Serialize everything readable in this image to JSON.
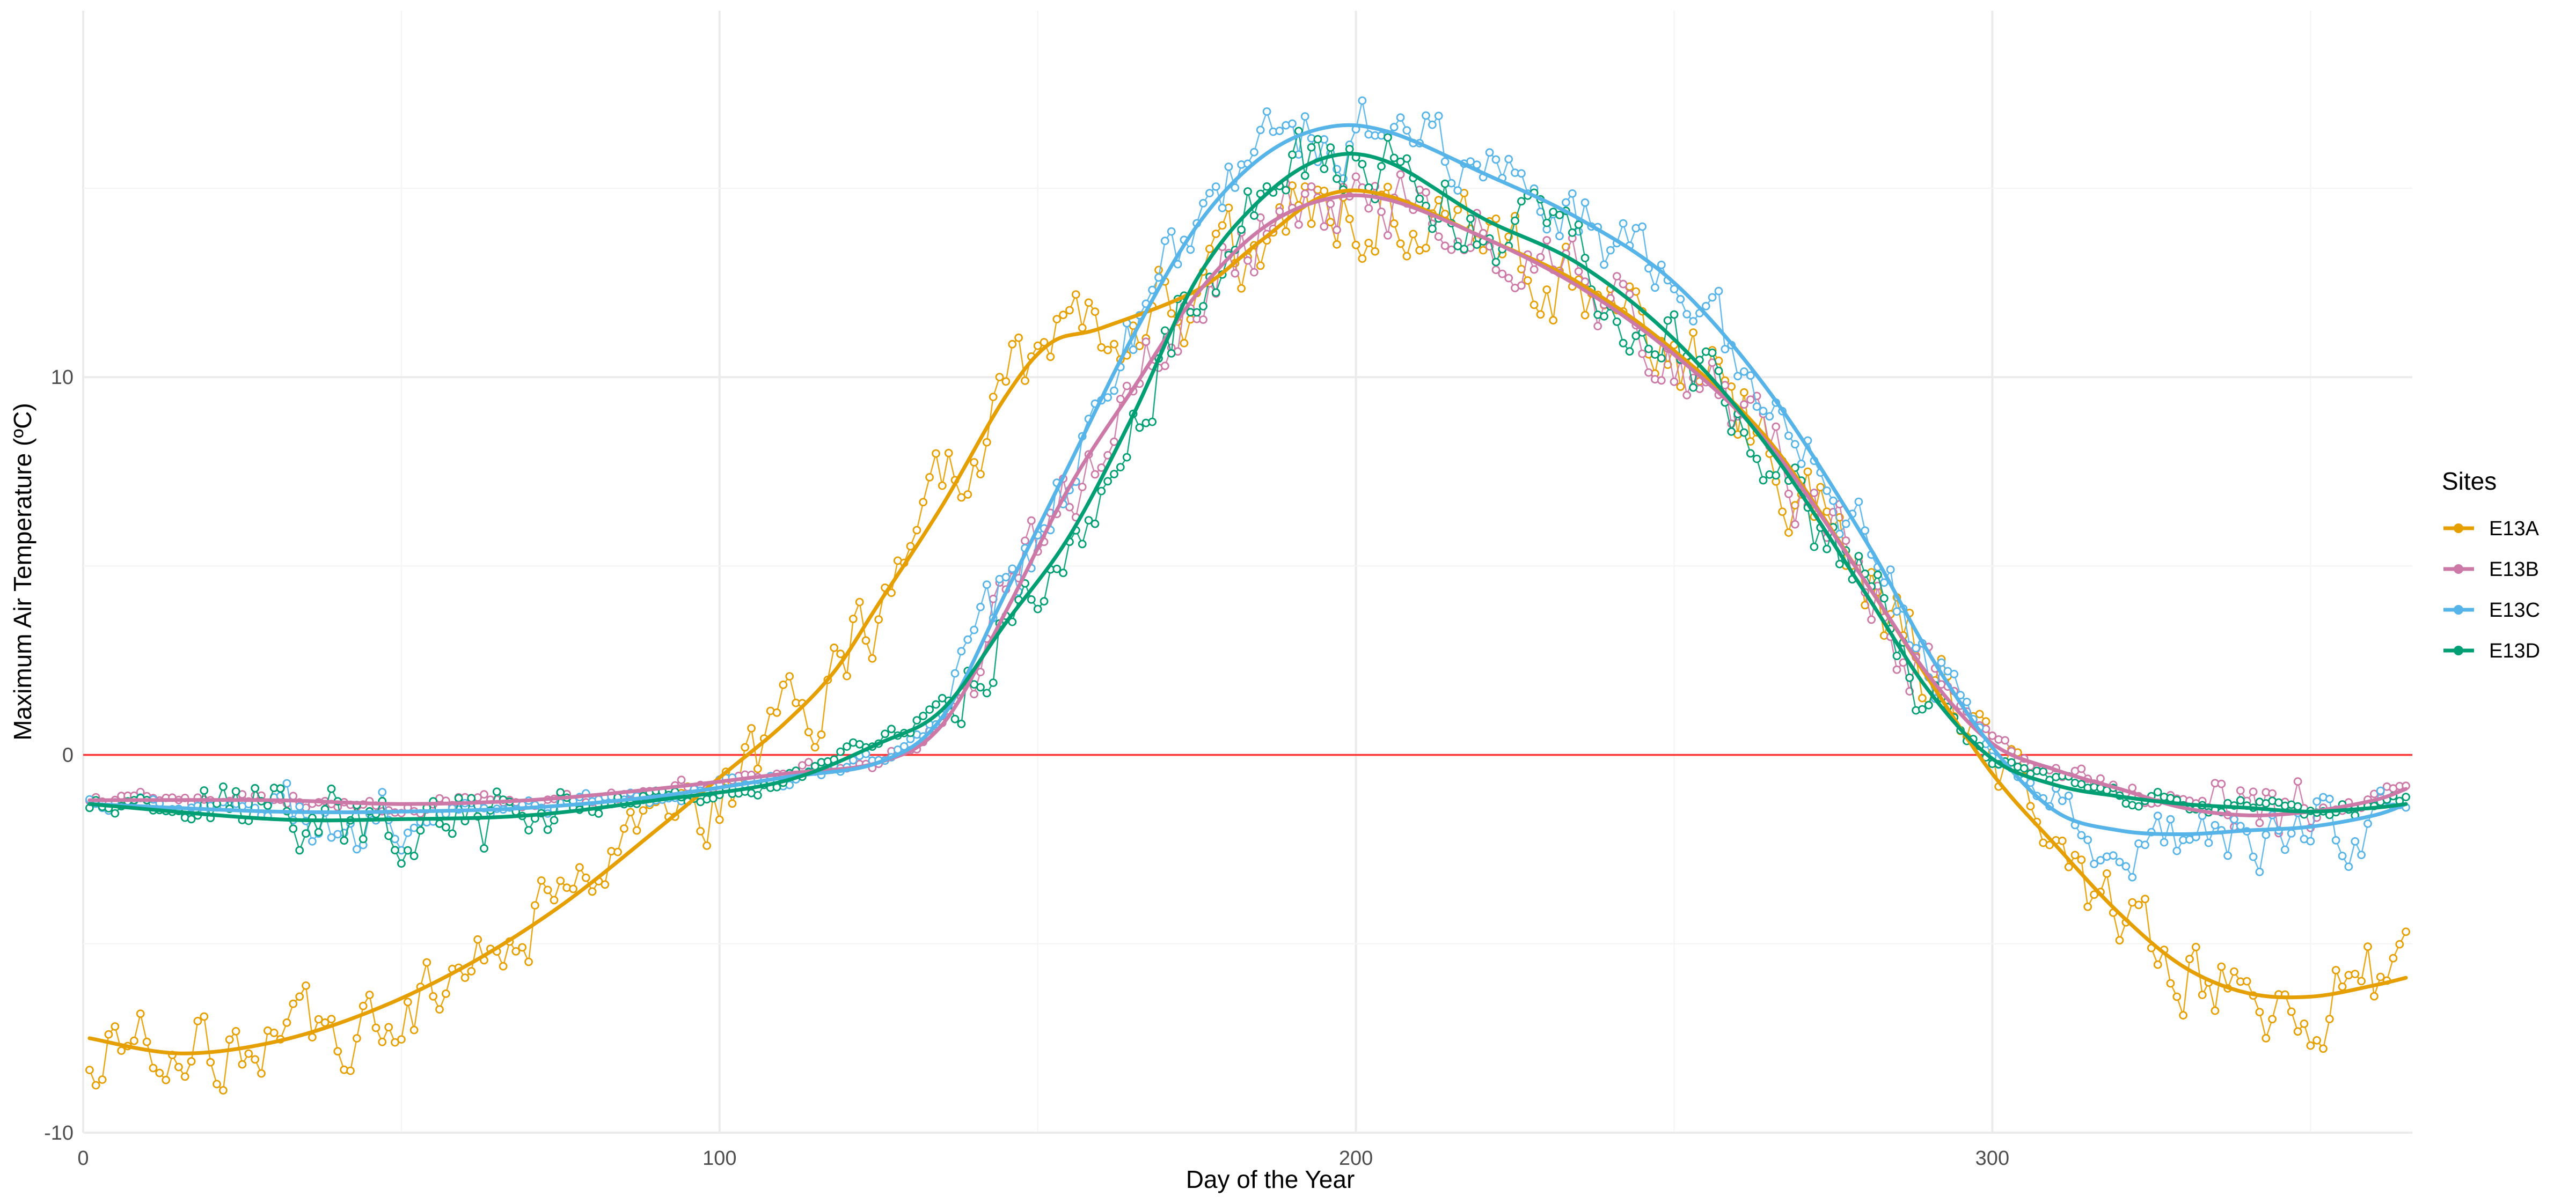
{
  "chart_data": {
    "type": "line",
    "title": "",
    "xlabel": "Day of the Year",
    "ylabel": "Maximum Air Temperature (ºC)",
    "xlim": [
      0,
      366
    ],
    "ylim": [
      -10,
      19.7
    ],
    "x_ticks": [
      0,
      100,
      200,
      300
    ],
    "x_tick_labels": [
      "0",
      "100",
      "200",
      "300"
    ],
    "y_ticks": [
      -10,
      0,
      10
    ],
    "y_tick_labels": [
      "-10",
      "0",
      "10"
    ],
    "grid": true,
    "reference_line": {
      "y": 0,
      "color": "#FF3333"
    },
    "legend": {
      "title": "Sites",
      "position": "right"
    },
    "series": [
      {
        "name": "E13A",
        "color": "#E69F00",
        "smooth_points": [
          [
            1,
            -7.5
          ],
          [
            15,
            -7.9
          ],
          [
            30,
            -7.6
          ],
          [
            45,
            -6.8
          ],
          [
            60,
            -5.6
          ],
          [
            75,
            -4.0
          ],
          [
            90,
            -2.0
          ],
          [
            100,
            -0.6
          ],
          [
            110,
            0.8
          ],
          [
            118,
            2.2
          ],
          [
            125,
            4.0
          ],
          [
            135,
            6.6
          ],
          [
            145,
            9.5
          ],
          [
            152,
            10.9
          ],
          [
            160,
            11.3
          ],
          [
            175,
            12.3
          ],
          [
            185,
            13.6
          ],
          [
            195,
            14.8
          ],
          [
            205,
            14.8
          ],
          [
            220,
            13.7
          ],
          [
            235,
            12.5
          ],
          [
            250,
            10.7
          ],
          [
            265,
            8.3
          ],
          [
            280,
            4.6
          ],
          [
            290,
            2.0
          ],
          [
            300,
            -0.5
          ],
          [
            310,
            -2.4
          ],
          [
            320,
            -4.2
          ],
          [
            330,
            -5.6
          ],
          [
            340,
            -6.3
          ],
          [
            350,
            -6.4
          ],
          [
            360,
            -6.1
          ],
          [
            365,
            -5.9
          ]
        ]
      },
      {
        "name": "E13B",
        "color": "#CC79A7",
        "smooth_points": [
          [
            1,
            -1.2
          ],
          [
            30,
            -1.2
          ],
          [
            50,
            -1.3
          ],
          [
            70,
            -1.2
          ],
          [
            90,
            -0.9
          ],
          [
            110,
            -0.5
          ],
          [
            125,
            -0.2
          ],
          [
            135,
            0.8
          ],
          [
            145,
            3.8
          ],
          [
            155,
            7.1
          ],
          [
            165,
            9.7
          ],
          [
            175,
            12.2
          ],
          [
            185,
            13.9
          ],
          [
            195,
            14.7
          ],
          [
            205,
            14.7
          ],
          [
            220,
            13.7
          ],
          [
            235,
            12.4
          ],
          [
            250,
            10.6
          ],
          [
            265,
            8.2
          ],
          [
            280,
            4.6
          ],
          [
            290,
            2.1
          ],
          [
            300,
            0.3
          ],
          [
            310,
            -0.4
          ],
          [
            320,
            -0.9
          ],
          [
            330,
            -1.4
          ],
          [
            340,
            -1.6
          ],
          [
            350,
            -1.5
          ],
          [
            360,
            -1.2
          ],
          [
            365,
            -0.9
          ]
        ]
      },
      {
        "name": "E13C",
        "color": "#56B4E9",
        "smooth_points": [
          [
            1,
            -1.3
          ],
          [
            30,
            -1.5
          ],
          [
            50,
            -1.5
          ],
          [
            70,
            -1.4
          ],
          [
            90,
            -1.1
          ],
          [
            110,
            -0.6
          ],
          [
            125,
            -0.2
          ],
          [
            135,
            1.0
          ],
          [
            145,
            4.3
          ],
          [
            155,
            7.7
          ],
          [
            165,
            11.1
          ],
          [
            175,
            14.0
          ],
          [
            185,
            15.8
          ],
          [
            195,
            16.6
          ],
          [
            205,
            16.5
          ],
          [
            220,
            15.4
          ],
          [
            235,
            14.2
          ],
          [
            250,
            12.5
          ],
          [
            265,
            9.6
          ],
          [
            280,
            5.7
          ],
          [
            290,
            2.7
          ],
          [
            300,
            0.2
          ],
          [
            310,
            -1.5
          ],
          [
            320,
            -2.0
          ],
          [
            330,
            -2.1
          ],
          [
            340,
            -2.0
          ],
          [
            350,
            -1.9
          ],
          [
            360,
            -1.6
          ],
          [
            365,
            -1.3
          ]
        ]
      },
      {
        "name": "E13D",
        "color": "#009E73",
        "smooth_points": [
          [
            1,
            -1.3
          ],
          [
            30,
            -1.7
          ],
          [
            50,
            -1.7
          ],
          [
            70,
            -1.6
          ],
          [
            90,
            -1.2
          ],
          [
            110,
            -0.7
          ],
          [
            125,
            0.3
          ],
          [
            135,
            1.2
          ],
          [
            145,
            3.5
          ],
          [
            155,
            5.8
          ],
          [
            165,
            9.0
          ],
          [
            175,
            12.6
          ],
          [
            185,
            14.7
          ],
          [
            195,
            15.8
          ],
          [
            205,
            15.7
          ],
          [
            220,
            14.2
          ],
          [
            235,
            13.0
          ],
          [
            250,
            11.0
          ],
          [
            265,
            8.1
          ],
          [
            280,
            4.3
          ],
          [
            290,
            1.7
          ],
          [
            300,
            -0.1
          ],
          [
            310,
            -0.8
          ],
          [
            320,
            -1.1
          ],
          [
            330,
            -1.3
          ],
          [
            340,
            -1.4
          ],
          [
            350,
            -1.5
          ],
          [
            360,
            -1.4
          ],
          [
            365,
            -1.3
          ]
        ]
      }
    ]
  }
}
